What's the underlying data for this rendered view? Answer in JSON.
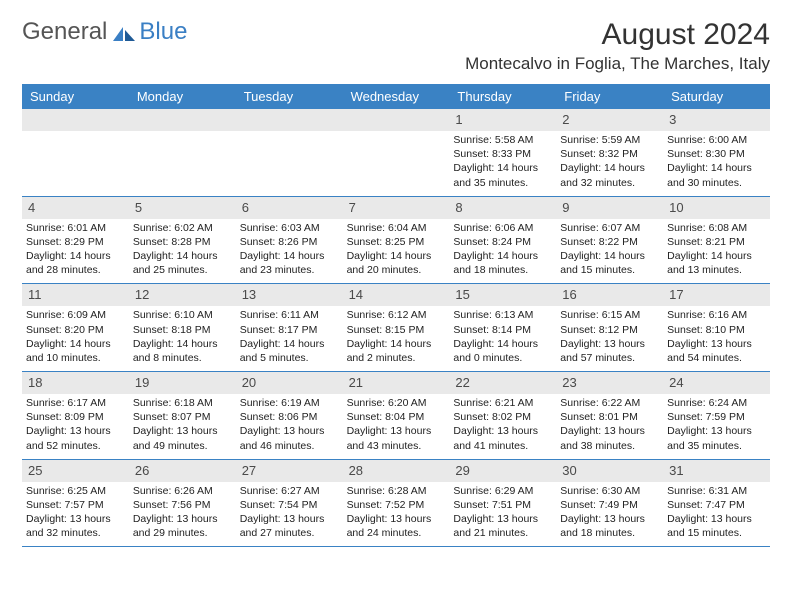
{
  "logo": {
    "general": "General",
    "blue": "Blue"
  },
  "title": "August 2024",
  "location": "Montecalvo in Foglia, The Marches, Italy",
  "colors": {
    "header_bg": "#3a82c4",
    "header_text": "#ffffff",
    "daynum_bg": "#e9e9e9",
    "border": "#3a82c4",
    "body_text": "#222222",
    "logo_general": "#555555",
    "logo_blue": "#3a7fc4"
  },
  "typography": {
    "title_fontsize": 30,
    "location_fontsize": 17,
    "header_fontsize": 13,
    "daynum_fontsize": 13,
    "cell_fontsize": 10.5,
    "logo_fontsize": 24
  },
  "day_headers": [
    "Sunday",
    "Monday",
    "Tuesday",
    "Wednesday",
    "Thursday",
    "Friday",
    "Saturday"
  ],
  "weeks": [
    [
      {
        "day": "",
        "sunrise": "",
        "sunset": "",
        "daylight1": "",
        "daylight2": ""
      },
      {
        "day": "",
        "sunrise": "",
        "sunset": "",
        "daylight1": "",
        "daylight2": ""
      },
      {
        "day": "",
        "sunrise": "",
        "sunset": "",
        "daylight1": "",
        "daylight2": ""
      },
      {
        "day": "",
        "sunrise": "",
        "sunset": "",
        "daylight1": "",
        "daylight2": ""
      },
      {
        "day": "1",
        "sunrise": "Sunrise: 5:58 AM",
        "sunset": "Sunset: 8:33 PM",
        "daylight1": "Daylight: 14 hours",
        "daylight2": "and 35 minutes."
      },
      {
        "day": "2",
        "sunrise": "Sunrise: 5:59 AM",
        "sunset": "Sunset: 8:32 PM",
        "daylight1": "Daylight: 14 hours",
        "daylight2": "and 32 minutes."
      },
      {
        "day": "3",
        "sunrise": "Sunrise: 6:00 AM",
        "sunset": "Sunset: 8:30 PM",
        "daylight1": "Daylight: 14 hours",
        "daylight2": "and 30 minutes."
      }
    ],
    [
      {
        "day": "4",
        "sunrise": "Sunrise: 6:01 AM",
        "sunset": "Sunset: 8:29 PM",
        "daylight1": "Daylight: 14 hours",
        "daylight2": "and 28 minutes."
      },
      {
        "day": "5",
        "sunrise": "Sunrise: 6:02 AM",
        "sunset": "Sunset: 8:28 PM",
        "daylight1": "Daylight: 14 hours",
        "daylight2": "and 25 minutes."
      },
      {
        "day": "6",
        "sunrise": "Sunrise: 6:03 AM",
        "sunset": "Sunset: 8:26 PM",
        "daylight1": "Daylight: 14 hours",
        "daylight2": "and 23 minutes."
      },
      {
        "day": "7",
        "sunrise": "Sunrise: 6:04 AM",
        "sunset": "Sunset: 8:25 PM",
        "daylight1": "Daylight: 14 hours",
        "daylight2": "and 20 minutes."
      },
      {
        "day": "8",
        "sunrise": "Sunrise: 6:06 AM",
        "sunset": "Sunset: 8:24 PM",
        "daylight1": "Daylight: 14 hours",
        "daylight2": "and 18 minutes."
      },
      {
        "day": "9",
        "sunrise": "Sunrise: 6:07 AM",
        "sunset": "Sunset: 8:22 PM",
        "daylight1": "Daylight: 14 hours",
        "daylight2": "and 15 minutes."
      },
      {
        "day": "10",
        "sunrise": "Sunrise: 6:08 AM",
        "sunset": "Sunset: 8:21 PM",
        "daylight1": "Daylight: 14 hours",
        "daylight2": "and 13 minutes."
      }
    ],
    [
      {
        "day": "11",
        "sunrise": "Sunrise: 6:09 AM",
        "sunset": "Sunset: 8:20 PM",
        "daylight1": "Daylight: 14 hours",
        "daylight2": "and 10 minutes."
      },
      {
        "day": "12",
        "sunrise": "Sunrise: 6:10 AM",
        "sunset": "Sunset: 8:18 PM",
        "daylight1": "Daylight: 14 hours",
        "daylight2": "and 8 minutes."
      },
      {
        "day": "13",
        "sunrise": "Sunrise: 6:11 AM",
        "sunset": "Sunset: 8:17 PM",
        "daylight1": "Daylight: 14 hours",
        "daylight2": "and 5 minutes."
      },
      {
        "day": "14",
        "sunrise": "Sunrise: 6:12 AM",
        "sunset": "Sunset: 8:15 PM",
        "daylight1": "Daylight: 14 hours",
        "daylight2": "and 2 minutes."
      },
      {
        "day": "15",
        "sunrise": "Sunrise: 6:13 AM",
        "sunset": "Sunset: 8:14 PM",
        "daylight1": "Daylight: 14 hours",
        "daylight2": "and 0 minutes."
      },
      {
        "day": "16",
        "sunrise": "Sunrise: 6:15 AM",
        "sunset": "Sunset: 8:12 PM",
        "daylight1": "Daylight: 13 hours",
        "daylight2": "and 57 minutes."
      },
      {
        "day": "17",
        "sunrise": "Sunrise: 6:16 AM",
        "sunset": "Sunset: 8:10 PM",
        "daylight1": "Daylight: 13 hours",
        "daylight2": "and 54 minutes."
      }
    ],
    [
      {
        "day": "18",
        "sunrise": "Sunrise: 6:17 AM",
        "sunset": "Sunset: 8:09 PM",
        "daylight1": "Daylight: 13 hours",
        "daylight2": "and 52 minutes."
      },
      {
        "day": "19",
        "sunrise": "Sunrise: 6:18 AM",
        "sunset": "Sunset: 8:07 PM",
        "daylight1": "Daylight: 13 hours",
        "daylight2": "and 49 minutes."
      },
      {
        "day": "20",
        "sunrise": "Sunrise: 6:19 AM",
        "sunset": "Sunset: 8:06 PM",
        "daylight1": "Daylight: 13 hours",
        "daylight2": "and 46 minutes."
      },
      {
        "day": "21",
        "sunrise": "Sunrise: 6:20 AM",
        "sunset": "Sunset: 8:04 PM",
        "daylight1": "Daylight: 13 hours",
        "daylight2": "and 43 minutes."
      },
      {
        "day": "22",
        "sunrise": "Sunrise: 6:21 AM",
        "sunset": "Sunset: 8:02 PM",
        "daylight1": "Daylight: 13 hours",
        "daylight2": "and 41 minutes."
      },
      {
        "day": "23",
        "sunrise": "Sunrise: 6:22 AM",
        "sunset": "Sunset: 8:01 PM",
        "daylight1": "Daylight: 13 hours",
        "daylight2": "and 38 minutes."
      },
      {
        "day": "24",
        "sunrise": "Sunrise: 6:24 AM",
        "sunset": "Sunset: 7:59 PM",
        "daylight1": "Daylight: 13 hours",
        "daylight2": "and 35 minutes."
      }
    ],
    [
      {
        "day": "25",
        "sunrise": "Sunrise: 6:25 AM",
        "sunset": "Sunset: 7:57 PM",
        "daylight1": "Daylight: 13 hours",
        "daylight2": "and 32 minutes."
      },
      {
        "day": "26",
        "sunrise": "Sunrise: 6:26 AM",
        "sunset": "Sunset: 7:56 PM",
        "daylight1": "Daylight: 13 hours",
        "daylight2": "and 29 minutes."
      },
      {
        "day": "27",
        "sunrise": "Sunrise: 6:27 AM",
        "sunset": "Sunset: 7:54 PM",
        "daylight1": "Daylight: 13 hours",
        "daylight2": "and 27 minutes."
      },
      {
        "day": "28",
        "sunrise": "Sunrise: 6:28 AM",
        "sunset": "Sunset: 7:52 PM",
        "daylight1": "Daylight: 13 hours",
        "daylight2": "and 24 minutes."
      },
      {
        "day": "29",
        "sunrise": "Sunrise: 6:29 AM",
        "sunset": "Sunset: 7:51 PM",
        "daylight1": "Daylight: 13 hours",
        "daylight2": "and 21 minutes."
      },
      {
        "day": "30",
        "sunrise": "Sunrise: 6:30 AM",
        "sunset": "Sunset: 7:49 PM",
        "daylight1": "Daylight: 13 hours",
        "daylight2": "and 18 minutes."
      },
      {
        "day": "31",
        "sunrise": "Sunrise: 6:31 AM",
        "sunset": "Sunset: 7:47 PM",
        "daylight1": "Daylight: 13 hours",
        "daylight2": "and 15 minutes."
      }
    ]
  ]
}
